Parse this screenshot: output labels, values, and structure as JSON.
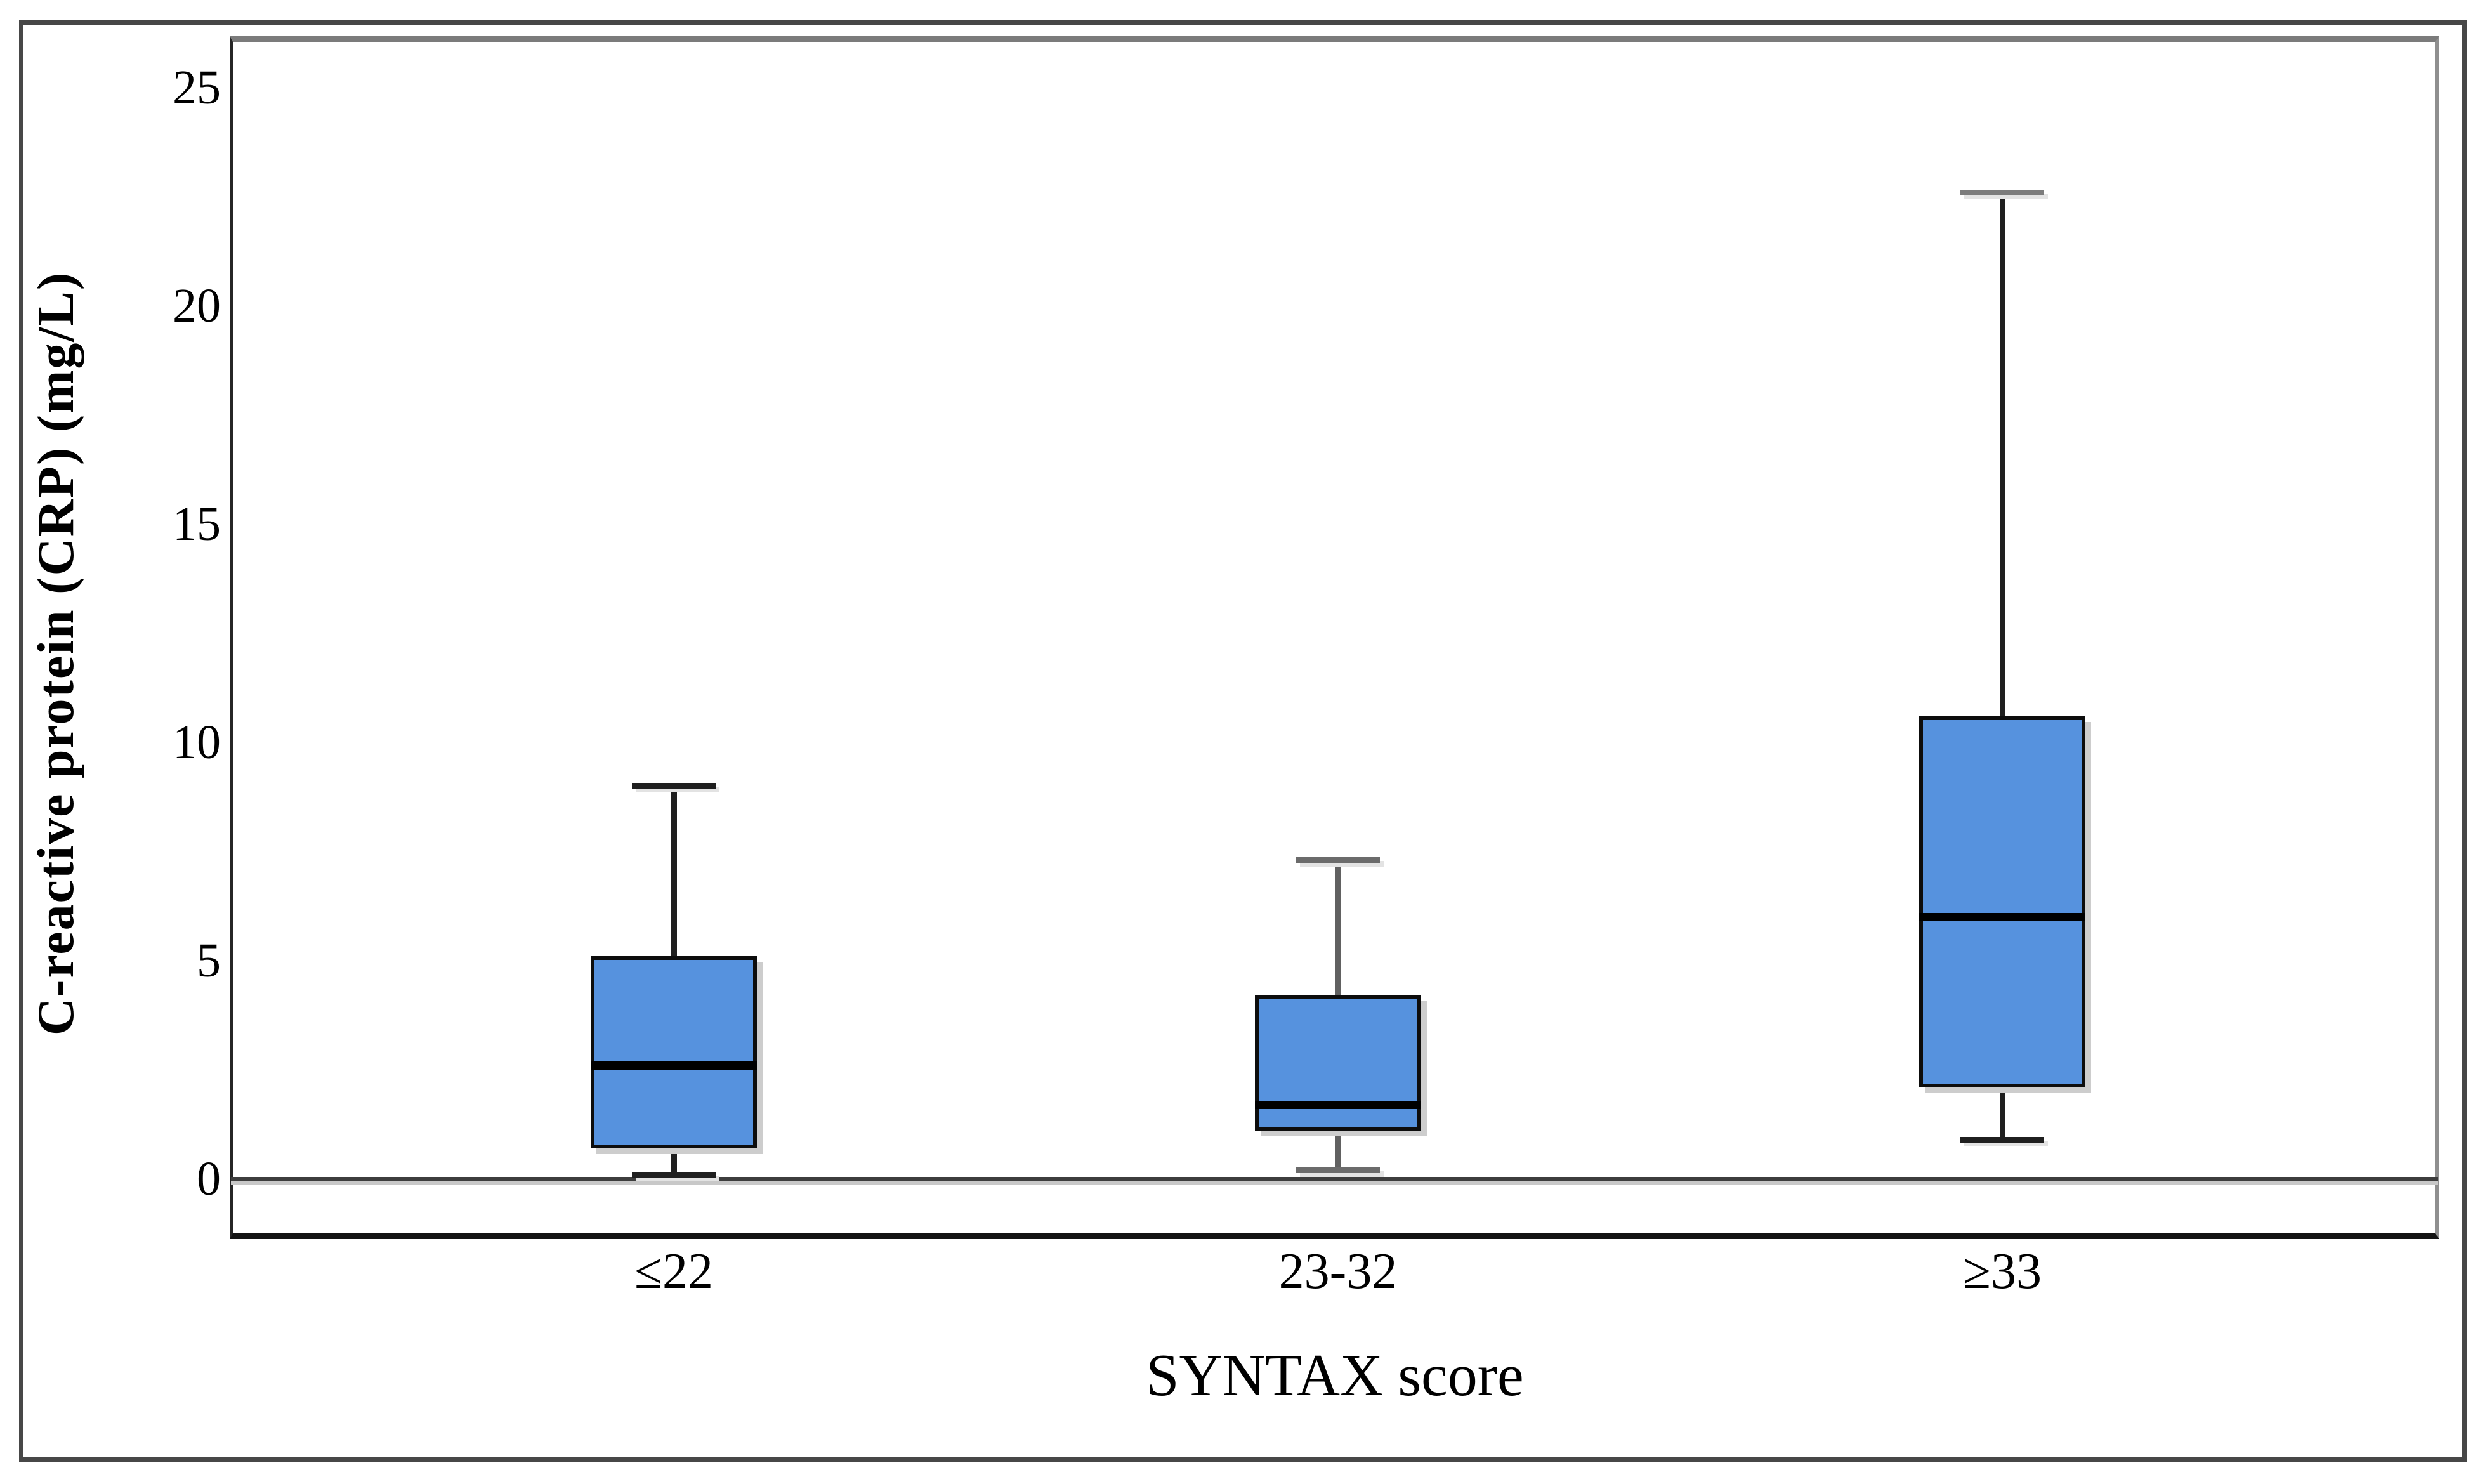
{
  "chart_data": {
    "type": "boxplot",
    "title": "",
    "xlabel": "SYNTAX score",
    "ylabel": "C-reactive protein (CRP) (mg/L)",
    "categories": [
      "≤22",
      "23-32",
      "≥33"
    ],
    "yticks": [
      0,
      5,
      10,
      15,
      20,
      25
    ],
    "ylim": [
      0,
      25
    ],
    "grid": false,
    "legend": "none",
    "series": [
      {
        "category": "≤22",
        "whisker_low": 0.1,
        "q1": 0.7,
        "median": 2.6,
        "q3": 5.1,
        "whisker_high": 9.0,
        "whisker_color": "#1f1f1f",
        "cap_top_color": "#1f1f1f",
        "cap_bottom_color": "#1f1f1f"
      },
      {
        "category": "23-32",
        "whisker_low": 0.2,
        "q1": 1.1,
        "median": 1.7,
        "q3": 4.2,
        "whisker_high": 7.3,
        "whisker_color": "#616161",
        "cap_top_color": "#6b6b6b",
        "cap_bottom_color": "#6b6b6b"
      },
      {
        "category": "≥33",
        "whisker_low": 0.9,
        "q1": 2.1,
        "median": 6.0,
        "q3": 10.6,
        "whisker_high": 22.6,
        "whisker_color": "#1f1f1f",
        "cap_top_color": "#7c7c7c",
        "cap_bottom_color": "#1f1f1f"
      }
    ],
    "style": {
      "box_fill": "#5692DE",
      "box_border": "#0d0d0d",
      "median_color": "#000000",
      "baseline_color": "#3d3d3d",
      "frame_color": "#7b7b7b",
      "outer_border_color": "#474747"
    }
  }
}
